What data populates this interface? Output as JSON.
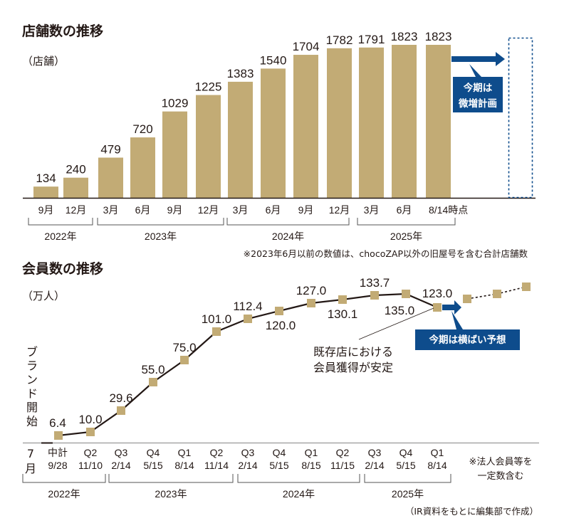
{
  "colors": {
    "bar": "#C2AB75",
    "accent_blue": "#0E4C8C",
    "text": "#231815",
    "line": "#231815",
    "axis": "#888888"
  },
  "chart_data": [
    {
      "type": "bar",
      "title": "店舗数の推移",
      "ylabel": "（店舗）",
      "xlabel": "",
      "categories": [
        "9月",
        "12月",
        "3月",
        "6月",
        "9月",
        "12月",
        "3月",
        "6月",
        "9月",
        "12月",
        "3月",
        "6月",
        "8/14時点"
      ],
      "values": [
        134,
        240,
        479,
        720,
        1029,
        1225,
        1383,
        1540,
        1704,
        1782,
        1791,
        1823,
        1823
      ],
      "year_groups": [
        {
          "label": "2022年",
          "from": 0,
          "to": 1
        },
        {
          "label": "2023年",
          "from": 2,
          "to": 5
        },
        {
          "label": "2024年",
          "from": 6,
          "to": 9
        },
        {
          "label": "2025年",
          "from": 10,
          "to": 12
        }
      ],
      "ylim": [
        0,
        1850
      ],
      "grid": false,
      "forecast": {
        "label_line1": "今期は",
        "label_line2": "微増計画",
        "style": "dotted-outline-bar"
      },
      "footnote": "※2023年6月以前の数値は、chocoZAP以外の旧屋号を含む合計店舗数"
    },
    {
      "type": "line",
      "title": "会員数の推移",
      "ylabel": "（万人）",
      "xlabel": "",
      "start_label": "ブランド開始",
      "start_tick": {
        "line1": "7",
        "line2": "月"
      },
      "categories": [
        {
          "q": "中計",
          "date": "9/28"
        },
        {
          "q": "Q2",
          "date": "11/10"
        },
        {
          "q": "Q3",
          "date": "2/14"
        },
        {
          "q": "Q4",
          "date": "5/15"
        },
        {
          "q": "Q1",
          "date": "8/14"
        },
        {
          "q": "Q2",
          "date": "11/14"
        },
        {
          "q": "Q3",
          "date": "2/14"
        },
        {
          "q": "Q4",
          "date": "5/15"
        },
        {
          "q": "Q1",
          "date": "8/15"
        },
        {
          "q": "Q2",
          "date": "11/15"
        },
        {
          "q": "Q3",
          "date": "2/14"
        },
        {
          "q": "Q4",
          "date": "5/15"
        },
        {
          "q": "Q1",
          "date": "8/14"
        }
      ],
      "values": [
        6.4,
        10.0,
        29.6,
        55.0,
        75.0,
        101.0,
        112.4,
        120.0,
        127.0,
        130.1,
        133.7,
        135.0,
        123.0
      ],
      "value_labels": [
        "6.4",
        "10.0",
        "29.6",
        "55.0",
        "75.0",
        "101.0",
        "112.4",
        "120.0",
        "127.0",
        "130.1",
        "133.7",
        "135.0",
        "123.0"
      ],
      "label_side": [
        "above",
        "above",
        "above",
        "above",
        "above",
        "above",
        "above",
        "below",
        "above",
        "below",
        "above",
        "below",
        "above"
      ],
      "projection_values": [
        125.0,
        127.0,
        130.0
      ],
      "year_groups": [
        {
          "label": "2022年",
          "from": -1,
          "to": 1
        },
        {
          "label": "2023年",
          "from": 2,
          "to": 5
        },
        {
          "label": "2024年",
          "from": 6,
          "to": 9
        },
        {
          "label": "2025年",
          "from": 10,
          "to": 12
        }
      ],
      "ylim": [
        0,
        140
      ],
      "grid": false,
      "annotation": {
        "line1": "既存店における",
        "line2": "会員獲得が安定"
      },
      "forecast_label": "今期は横ばい予想",
      "side_note": {
        "line1": "※法人会員等を",
        "line2": "一定数含む"
      },
      "source": "（IR資料をもとに編集部で作成）"
    }
  ]
}
